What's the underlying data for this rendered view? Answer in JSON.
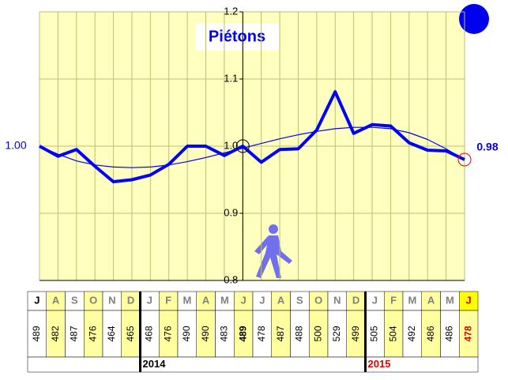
{
  "chart_data": {
    "type": "line",
    "title": "Piétons",
    "categories": [
      "J",
      "A",
      "S",
      "O",
      "N",
      "D",
      "J",
      "F",
      "M",
      "A",
      "M",
      "J",
      "J",
      "A",
      "S",
      "O",
      "N",
      "D",
      "J",
      "F",
      "M",
      "A",
      "M",
      "J"
    ],
    "series": [
      {
        "color": "#0000ff",
        "values": [
          1.0,
          0.985,
          0.995,
          0.97,
          0.947,
          0.95,
          0.957,
          0.973,
          1.0,
          1.0,
          0.986,
          1.0,
          0.976,
          0.995,
          0.996,
          1.024,
          1.081,
          1.019,
          1.032,
          1.03,
          1.005,
          0.994,
          0.993,
          0.98
        ],
        "value_labels": [
          "1.00",
          null,
          null,
          null,
          null,
          null,
          null,
          null,
          null,
          null,
          null,
          null,
          null,
          null,
          null,
          null,
          null,
          null,
          null,
          null,
          null,
          null,
          null,
          "0.98"
        ]
      },
      {
        "color": "#0000ff",
        "values": [
          1.0,
          0.988,
          0.978,
          0.972,
          0.969,
          0.968,
          0.969,
          0.972,
          0.977,
          0.983,
          0.99,
          0.997,
          1.004,
          1.011,
          1.017,
          1.022,
          1.026,
          1.028,
          1.028,
          1.026,
          1.02,
          1.01,
          0.996,
          0.98
        ]
      }
    ],
    "ylim": [
      0.8,
      1.2
    ],
    "yticks": [
      0.8,
      0.9,
      {
        "value": 1,
        "label": "1.0"
      },
      1.1,
      1.2
    ],
    "grid": true
  },
  "table": {
    "counts": [
      489,
      482,
      487,
      476,
      464,
      465,
      468,
      476,
      490,
      490,
      483,
      489,
      478,
      487,
      488,
      500,
      529,
      499,
      505,
      504,
      492,
      486,
      486,
      478
    ],
    "years": [
      "2014",
      "2015"
    ]
  }
}
